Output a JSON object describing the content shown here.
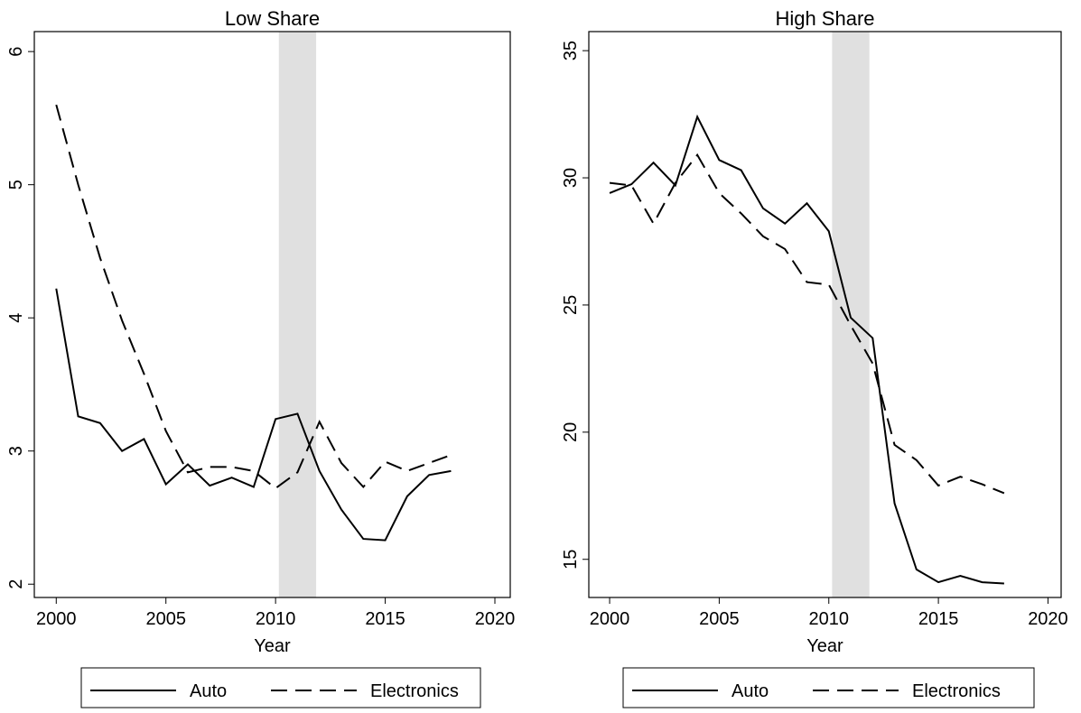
{
  "chart_data": [
    {
      "type": "line",
      "title": "Low Share",
      "x_label": "Year",
      "x": [
        2000,
        2001,
        2002,
        2003,
        2004,
        2005,
        2006,
        2007,
        2008,
        2009,
        2010,
        2011,
        2012,
        2013,
        2014,
        2015,
        2016,
        2017,
        2018
      ],
      "series": [
        {
          "name": "Auto",
          "color": "#000000",
          "dash": "solid",
          "values": [
            4.22,
            3.26,
            3.21,
            3.0,
            3.09,
            2.75,
            2.9,
            2.74,
            2.8,
            2.73,
            3.24,
            3.28,
            2.85,
            2.56,
            2.34,
            2.33,
            2.66,
            2.82,
            2.85
          ]
        },
        {
          "name": "Electronics",
          "color": "#000000",
          "dash": "dashed",
          "values": [
            5.6,
            5.0,
            4.45,
            3.98,
            3.58,
            3.15,
            2.84,
            2.88,
            2.88,
            2.85,
            2.72,
            2.84,
            3.22,
            2.91,
            2.73,
            2.92,
            2.85,
            2.91,
            2.97
          ]
        }
      ],
      "shaded_region": [
        2010.15,
        2011.85
      ],
      "xlim": [
        1999,
        2020.7
      ],
      "xticks": [
        2000,
        2005,
        2010,
        2015,
        2020
      ],
      "ylim": [
        1.9,
        6.15
      ],
      "yticks": [
        2,
        3,
        4,
        5,
        6
      ],
      "grid": false
    },
    {
      "type": "line",
      "title": "High Share",
      "x_label": "Year",
      "x": [
        2000,
        2001,
        2002,
        2003,
        2004,
        2005,
        2006,
        2007,
        2008,
        2009,
        2010,
        2011,
        2012,
        2013,
        2014,
        2015,
        2016,
        2017,
        2018
      ],
      "series": [
        {
          "name": "Auto",
          "color": "#000000",
          "dash": "solid",
          "values": [
            29.4,
            29.75,
            30.6,
            29.7,
            32.4,
            30.7,
            30.3,
            28.8,
            28.2,
            29.0,
            27.9,
            24.5,
            23.7,
            17.2,
            14.6,
            14.1,
            14.35,
            14.1,
            14.05
          ]
        },
        {
          "name": "Electronics",
          "color": "#000000",
          "dash": "dashed",
          "values": [
            29.8,
            29.7,
            28.2,
            29.8,
            30.9,
            29.4,
            28.6,
            27.7,
            27.2,
            25.9,
            25.8,
            24.2,
            22.7,
            19.5,
            18.9,
            17.9,
            18.25,
            17.95,
            17.6
          ]
        }
      ],
      "shaded_region": [
        2010.15,
        2011.85
      ],
      "xlim": [
        1999.05,
        2020.6
      ],
      "xticks": [
        2000,
        2005,
        2010,
        2015,
        2020
      ],
      "ylim": [
        13.5,
        35.75
      ],
      "yticks": [
        15,
        20,
        25,
        30,
        35
      ],
      "grid": false
    }
  ]
}
